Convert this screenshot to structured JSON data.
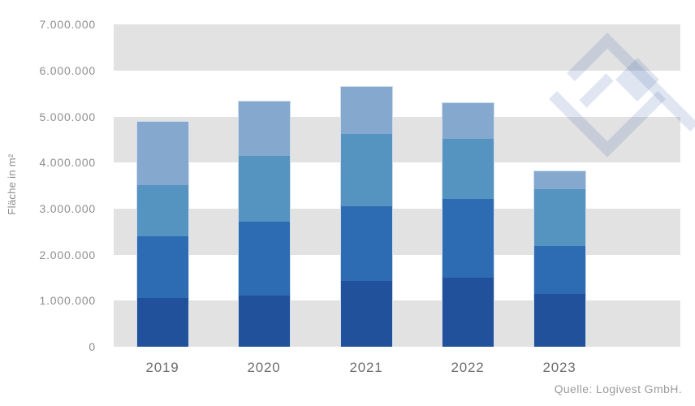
{
  "y_axis": {
    "title": "Fläche in m²",
    "tick_labels": [
      "0",
      "1.000.000",
      "2.000.000",
      "3.000.000",
      "4.000.000",
      "5.000.000",
      "6.000.000",
      "7.000.000"
    ]
  },
  "x_axis": {
    "tick_labels": [
      "2019",
      "2020",
      "2021",
      "2022",
      "2023"
    ]
  },
  "source": {
    "text": "Quelle: Logivest GmbH."
  },
  "watermark": {
    "icon": "logivest-diamond-logo",
    "color": "#3e65a6"
  },
  "style": {
    "band_gray": "#e2e2e2",
    "bar_edge": "#cedcee"
  },
  "chart_data": {
    "type": "bar",
    "stacked": true,
    "title": "",
    "xlabel": "",
    "ylabel": "Fläche in m²",
    "ylim": [
      0,
      7000000
    ],
    "grid": "alternating horizontal gray bands (0-1M, 2-3M, 4-5M, 6-7M)",
    "legend": "none",
    "categories": [
      "2019",
      "2020",
      "2021",
      "2022",
      "2023"
    ],
    "series": [
      {
        "name": "segment-1-bottom",
        "color": "#21519a",
        "values": [
          1060000,
          1110000,
          1430000,
          1500000,
          1150000
        ]
      },
      {
        "name": "segment-2",
        "color": "#2d6cb3",
        "values": [
          1340000,
          1610000,
          1620000,
          1710000,
          1040000
        ]
      },
      {
        "name": "segment-3",
        "color": "#5593c0",
        "values": [
          1110000,
          1420000,
          1570000,
          1300000,
          1230000
        ]
      },
      {
        "name": "segment-4-top",
        "color": "#85a9ce",
        "values": [
          1375000,
          1190000,
          1020000,
          780000,
          390000
        ]
      }
    ],
    "totals": [
      4885000,
      5330000,
      5640000,
      5290000,
      3810000
    ],
    "source": "Quelle: Logivest GmbH."
  }
}
